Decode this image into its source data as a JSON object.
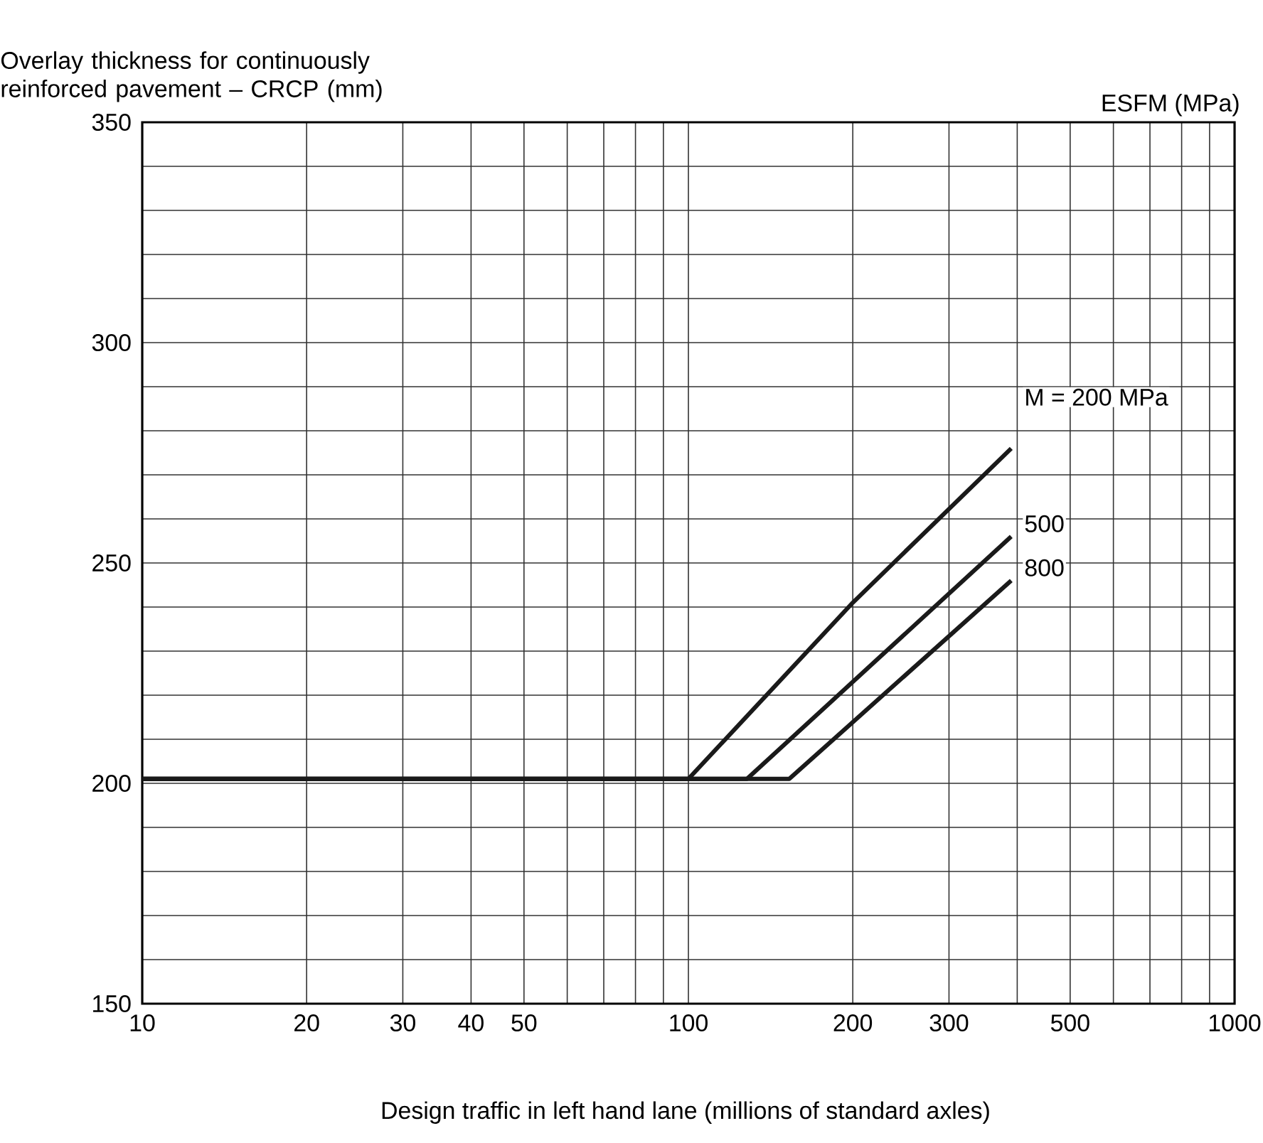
{
  "chart_data": {
    "type": "line",
    "ylabel": "Overlay thickness for continuously reinforced pavement – CRCP (mm)",
    "xlabel": "Design traffic in left hand lane (millions of standard axles)",
    "legend_title": "ESFM (MPa)",
    "log": "x",
    "xlim": [
      10,
      1000
    ],
    "ylim": [
      150,
      350
    ],
    "xticks": [
      10,
      20,
      30,
      40,
      50,
      {
        "value": 60,
        "label": null
      },
      {
        "value": 70,
        "label": null
      },
      {
        "value": 80,
        "label": null
      },
      {
        "value": 90,
        "label": null
      },
      100,
      200,
      300,
      {
        "value": 400,
        "label": null
      },
      500,
      {
        "value": 600,
        "label": null
      },
      {
        "value": 700,
        "label": null
      },
      {
        "value": 800,
        "label": null
      },
      {
        "value": 900,
        "label": null
      },
      1000
    ],
    "yticks": [
      150,
      {
        "value": 160,
        "label": null
      },
      {
        "value": 170,
        "label": null
      },
      {
        "value": 180,
        "label": null
      },
      {
        "value": 190,
        "label": null
      },
      200,
      {
        "value": 210,
        "label": null
      },
      {
        "value": 220,
        "label": null
      },
      {
        "value": 230,
        "label": null
      },
      {
        "value": 240,
        "label": null
      },
      250,
      {
        "value": 260,
        "label": null
      },
      {
        "value": 270,
        "label": null
      },
      {
        "value": 280,
        "label": null
      },
      {
        "value": 290,
        "label": null
      },
      300,
      {
        "value": 310,
        "label": null
      },
      {
        "value": 320,
        "label": null
      },
      {
        "value": 330,
        "label": null
      },
      {
        "value": 340,
        "label": null
      },
      350
    ],
    "grid": true,
    "legend": false,
    "marker": "none",
    "line_style": "solid",
    "series": [
      {
        "name": "M = 200 MPa",
        "color": "#1a1a1a",
        "x": [
          10,
          100,
          200,
          390
        ],
        "values": [
          201,
          201,
          241,
          276
        ]
      },
      {
        "name": "500",
        "color": "#1a1a1a",
        "x": [
          10,
          128,
          390
        ],
        "values": [
          201,
          201,
          256
        ]
      },
      {
        "name": "800",
        "color": "#1a1a1a",
        "x": [
          10,
          153,
          390
        ],
        "values": [
          201,
          201,
          246
        ]
      }
    ]
  }
}
